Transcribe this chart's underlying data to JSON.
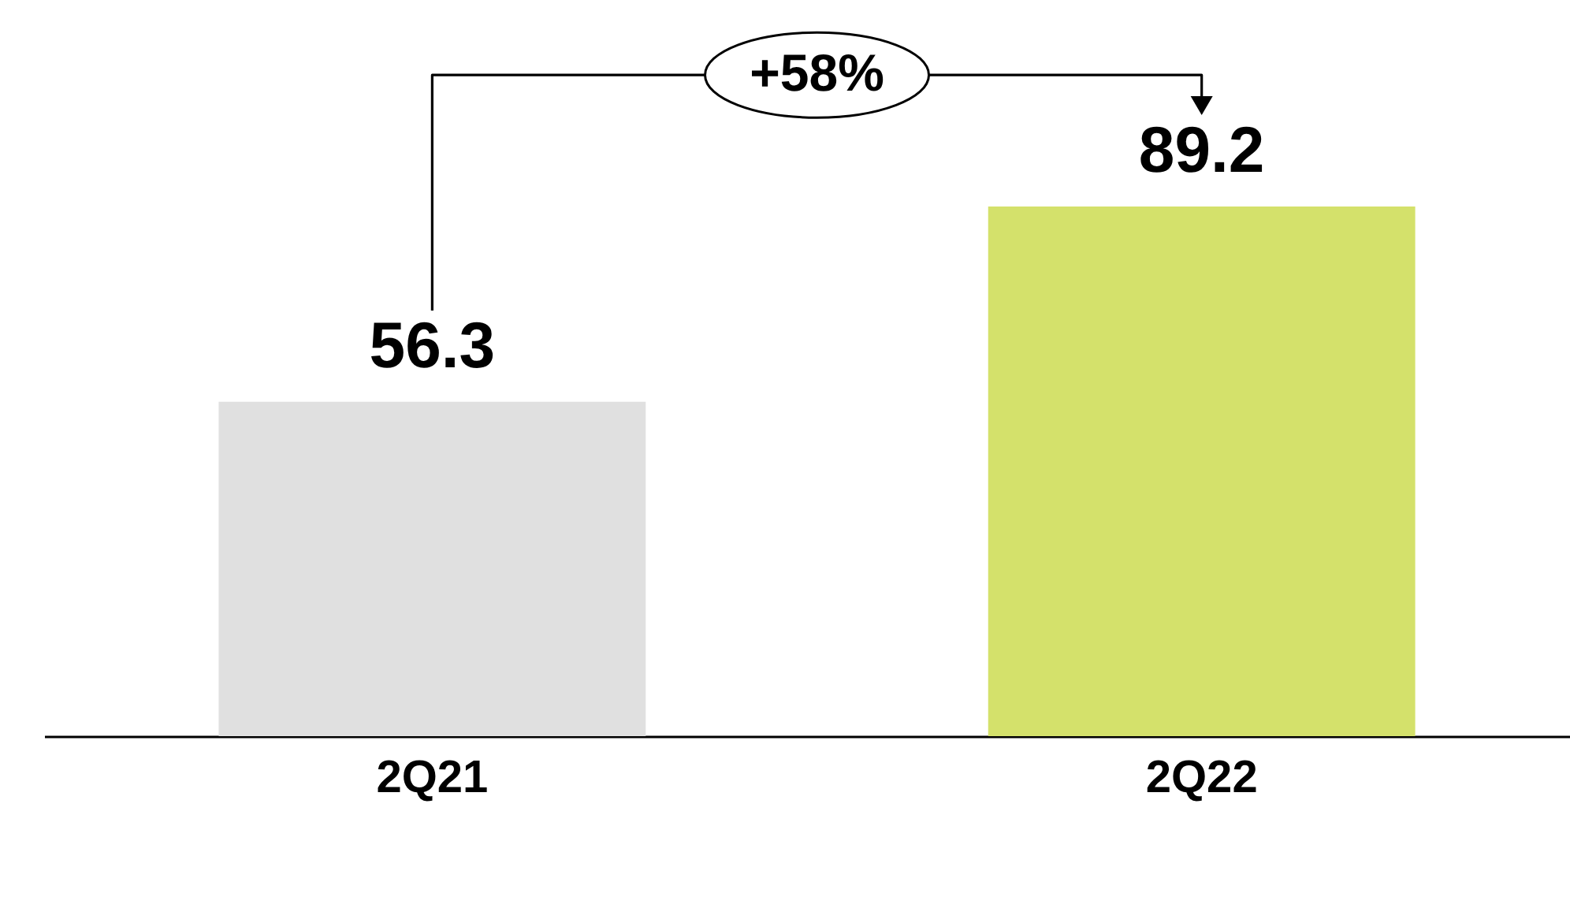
{
  "chart_data": {
    "type": "bar",
    "categories": [
      "2Q21",
      "2Q22"
    ],
    "values": [
      56.3,
      89.2
    ],
    "colors": [
      "#e0e0e0",
      "#d4e16b"
    ],
    "data_labels": true,
    "annotations": [
      "+58%"
    ]
  }
}
